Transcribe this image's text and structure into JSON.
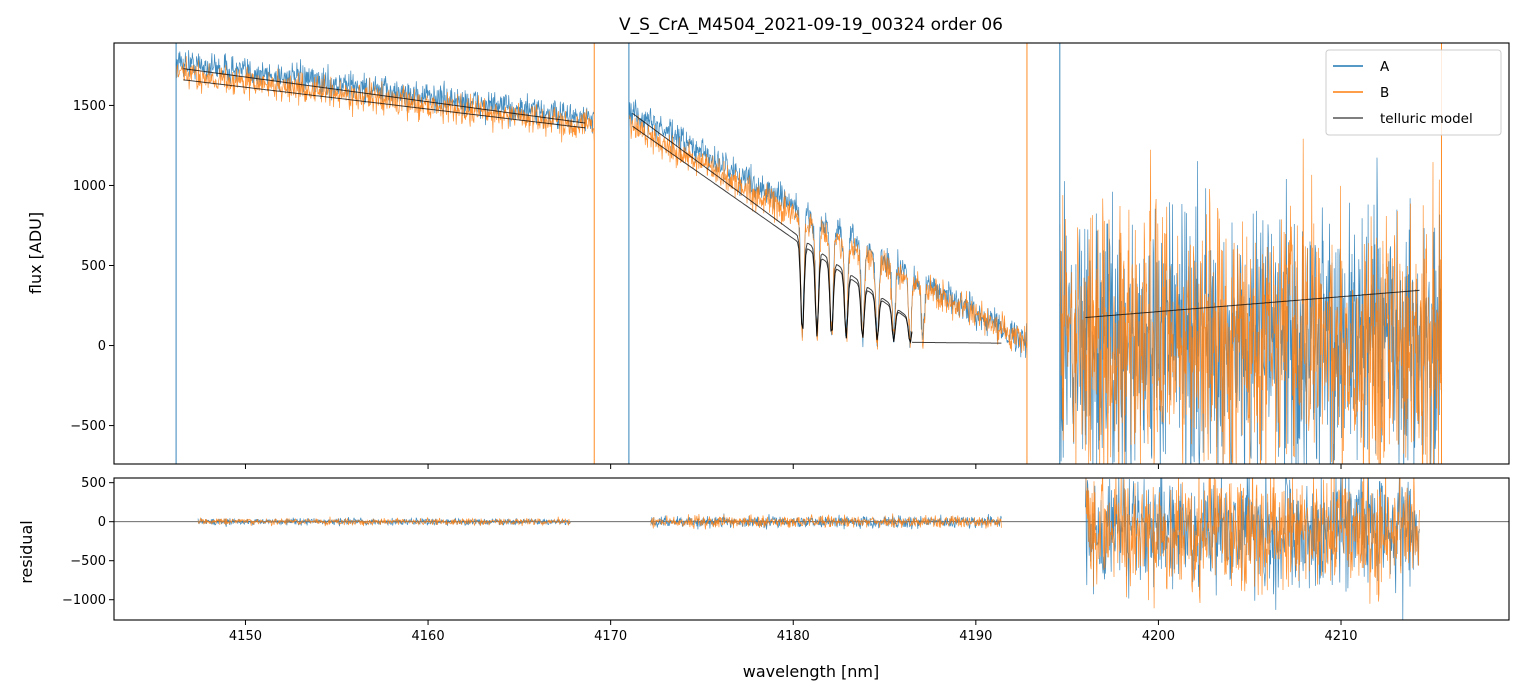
{
  "chart_data": {
    "type": "line",
    "title": "V_S_CrA_M4504_2021-09-19_00324  order 06",
    "xlabel": "wavelength [nm]",
    "xlim": [
      4142.8,
      4219.2
    ],
    "x_ticks": [
      4150,
      4160,
      4170,
      4180,
      4190,
      4200,
      4210
    ],
    "x_tick_labels": [
      "4150",
      "4160",
      "4170",
      "4180",
      "4190",
      "4200",
      "4210"
    ],
    "colors": {
      "A": "#1f77b4",
      "B": "#ff7f0e",
      "model": "#000000"
    },
    "legend": {
      "position": "top-right",
      "entries": [
        {
          "label": "A",
          "color": "#1f77b4"
        },
        {
          "label": "B",
          "color": "#ff7f0e"
        },
        {
          "label": "telluric model",
          "color": "#555555"
        }
      ]
    },
    "panels": [
      {
        "name": "flux",
        "ylabel": "flux [ADU]",
        "ylim": [
          -740,
          1890
        ],
        "y_ticks": [
          -500,
          0,
          500,
          1000,
          1500
        ],
        "y_tick_labels": [
          "−500",
          "0",
          "500",
          "1000",
          "1500"
        ],
        "segments": [
          {
            "x_start": 4146.2,
            "x_end": 4169.1,
            "A_start": 1770,
            "A_end": 1410,
            "B_start": 1700,
            "B_end": 1370,
            "noise": 45
          },
          {
            "x_start": 4171.0,
            "x_end": 4192.8,
            "A_start": 1470,
            "A_end": 20,
            "B_start": 1380,
            "B_end": 10,
            "noise": 45
          },
          {
            "x_start": 4194.6,
            "x_end": 4215.5,
            "A_start": 30,
            "A_end": 30,
            "B_start": 30,
            "B_end": 30,
            "noise": 420
          }
        ],
        "telluric_model": [
          {
            "x": [
              4146.6,
              4168.6
            ],
            "y": [
              1730,
              1390
            ],
            "label": "A"
          },
          {
            "x": [
              4146.6,
              4168.6
            ],
            "y": [
              1660,
              1360
            ],
            "label": "B"
          },
          {
            "x": [
              4171.2,
              4186.5
            ],
            "y": [
              1450,
              160
            ],
            "label": "A"
          },
          {
            "x": [
              4171.2,
              4186.5
            ],
            "y": [
              1370,
              150
            ],
            "label": "B"
          },
          {
            "x": [
              4186.5,
              4191.4
            ],
            "y": [
              20,
              15
            ],
            "label": "A"
          },
          {
            "x": [
              4196.0,
              4214.3
            ],
            "y": [
              175,
              345
            ],
            "label": "B"
          }
        ],
        "absorption_lines_x": [
          4180.5,
          4181.3,
          4182.1,
          4182.9,
          4183.8,
          4184.6,
          4185.5,
          4186.4,
          4187.1
        ]
      },
      {
        "name": "residual",
        "ylabel": "residual",
        "ylim": [
          -1260,
          560
        ],
        "y_ticks": [
          -1000,
          -500,
          0,
          500
        ],
        "y_tick_labels": [
          "−1000",
          "−500",
          "0",
          "500"
        ],
        "segments": [
          {
            "x_start": 4147.4,
            "x_end": 4167.8,
            "mean": 0,
            "noise": 22
          },
          {
            "x_start": 4172.2,
            "x_end": 4191.4,
            "mean": 0,
            "noise": 38
          },
          {
            "x_start": 4196.0,
            "x_end": 4214.3,
            "mean": -120,
            "noise": 380
          }
        ]
      }
    ]
  }
}
